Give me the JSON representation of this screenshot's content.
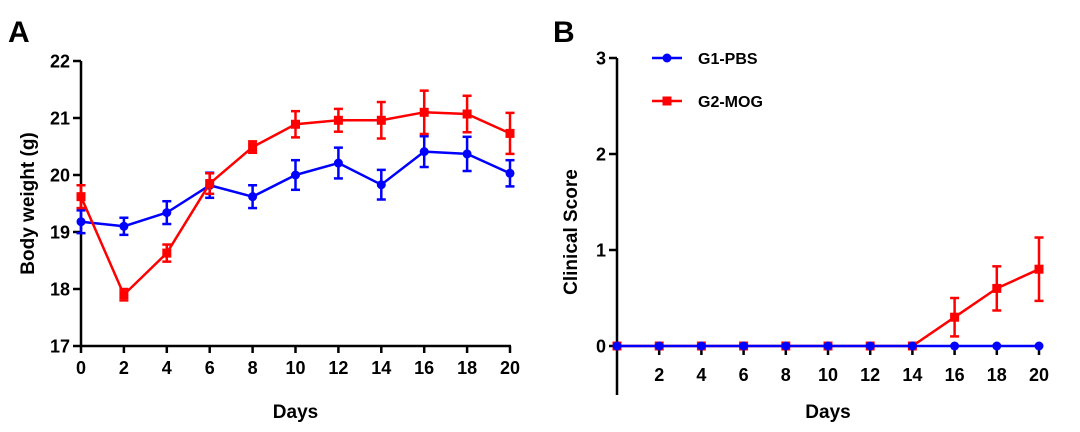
{
  "chart_data": [
    {
      "panel": "A",
      "type": "line",
      "title": "",
      "xlabel": "Days",
      "ylabel": "Body weight (g)",
      "xlim": [
        0,
        20
      ],
      "ylim": [
        17,
        22
      ],
      "xticks": [
        0,
        2,
        4,
        6,
        8,
        10,
        12,
        14,
        16,
        18,
        20
      ],
      "yticks": [
        17,
        18,
        19,
        20,
        21,
        22
      ],
      "grid": false,
      "x": [
        0,
        2,
        4,
        6,
        8,
        10,
        12,
        14,
        16,
        18,
        20
      ],
      "series": [
        {
          "name": "G1-PBS",
          "color": "#0000ff",
          "marker": "circle",
          "values": [
            19.18,
            19.1,
            19.34,
            19.82,
            19.62,
            20.0,
            20.21,
            19.83,
            20.41,
            20.37,
            20.03
          ],
          "errors": [
            0.2,
            0.15,
            0.2,
            0.22,
            0.2,
            0.26,
            0.27,
            0.26,
            0.27,
            0.3,
            0.23
          ]
        },
        {
          "name": "G2-MOG",
          "color": "#ff0000",
          "marker": "square",
          "values": [
            19.62,
            17.9,
            18.63,
            19.85,
            20.49,
            20.89,
            20.96,
            20.96,
            21.1,
            21.07,
            20.73
          ],
          "errors": [
            0.2,
            0.1,
            0.15,
            0.18,
            0.1,
            0.23,
            0.2,
            0.32,
            0.38,
            0.32,
            0.36
          ]
        }
      ]
    },
    {
      "panel": "B",
      "type": "line",
      "title": "",
      "xlabel": "Days",
      "ylabel": "Clinical Score",
      "xlim": [
        0,
        20
      ],
      "ylim": [
        0,
        3
      ],
      "xticks": [
        2,
        4,
        6,
        8,
        10,
        12,
        14,
        16,
        18,
        20
      ],
      "yticks": [
        0,
        1,
        2,
        3
      ],
      "grid": false,
      "legend_position": "top-left",
      "x": [
        0,
        2,
        4,
        6,
        8,
        10,
        12,
        14,
        16,
        18,
        20
      ],
      "series": [
        {
          "name": "G1-PBS",
          "color": "#0000ff",
          "marker": "circle",
          "values": [
            0,
            0,
            0,
            0,
            0,
            0,
            0,
            0,
            0,
            0,
            0
          ],
          "errors": [
            0,
            0,
            0,
            0,
            0,
            0,
            0,
            0,
            0,
            0,
            0
          ]
        },
        {
          "name": "G2-MOG",
          "color": "#ff0000",
          "marker": "square",
          "values": [
            0,
            0,
            0,
            0,
            0,
            0,
            0,
            0,
            0.3,
            0.6,
            0.8
          ],
          "errors": [
            0,
            0,
            0,
            0,
            0,
            0,
            0,
            0,
            0.2,
            0.23,
            0.33
          ]
        }
      ]
    }
  ]
}
